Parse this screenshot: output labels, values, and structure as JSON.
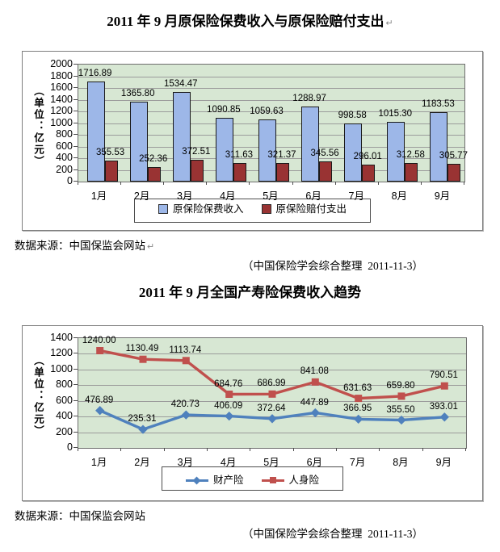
{
  "doc": {
    "title1_mark": "↵",
    "source1": "数据来源：中国保监会网站",
    "source1_mark": "↵",
    "credit1": "（中国保险学会综合整理  2011-11-3）",
    "source2": "数据来源：中国保监会网站",
    "credit2": "（中国保险学会综合整理  2011-11-3）"
  },
  "colors": {
    "chart_border": "#7f7f7f",
    "grid": "#9b9b9b",
    "axis": "#6e6e6e"
  },
  "chart_data": [
    {
      "type": "bar",
      "title": "2011 年 9 月原保险保费收入与原保险赔付支出",
      "ylabel": "（单位：亿元）",
      "categories": [
        "1月",
        "2月",
        "3月",
        "4月",
        "5月",
        "6月",
        "7月",
        "8月",
        "9月"
      ],
      "series": [
        {
          "name": "原保险保费收入",
          "color": "#9db7e8",
          "values": [
            1716.89,
            1365.8,
            1534.47,
            1090.85,
            1059.63,
            1288.97,
            998.58,
            1015.3,
            1183.53
          ]
        },
        {
          "name": "原保险赔付支出",
          "color": "#993333",
          "values": [
            355.53,
            252.36,
            372.51,
            311.63,
            321.37,
            345.56,
            296.01,
            312.58,
            305.77
          ]
        }
      ],
      "ylim": [
        0,
        2000
      ],
      "ytick_step": 200,
      "grid": true,
      "legend_position": "bottom",
      "plot_bg": "#d7e7d3",
      "label_decimals": 2
    },
    {
      "type": "line",
      "title": "2011 年 9 月全国产寿险保费收入趋势",
      "ylabel": "（单位：亿元）",
      "categories": [
        "1月",
        "2月",
        "3月",
        "4月",
        "5月",
        "6月",
        "7月",
        "8月",
        "9月"
      ],
      "series": [
        {
          "name": "财产险",
          "color": "#4f81bd",
          "marker": "diamond",
          "values": [
            476.89,
            235.31,
            420.73,
            406.09,
            372.64,
            447.89,
            366.95,
            355.5,
            393.01
          ]
        },
        {
          "name": "人身险",
          "color": "#c0504d",
          "marker": "square",
          "values": [
            1240.0,
            1130.49,
            1113.74,
            684.76,
            686.99,
            841.08,
            631.63,
            659.8,
            790.51
          ]
        }
      ],
      "ylim": [
        0,
        1400
      ],
      "ytick_step": 200,
      "grid": true,
      "legend_position": "bottom",
      "plot_bg": "#d7e7d3",
      "label_decimals": 2
    }
  ]
}
